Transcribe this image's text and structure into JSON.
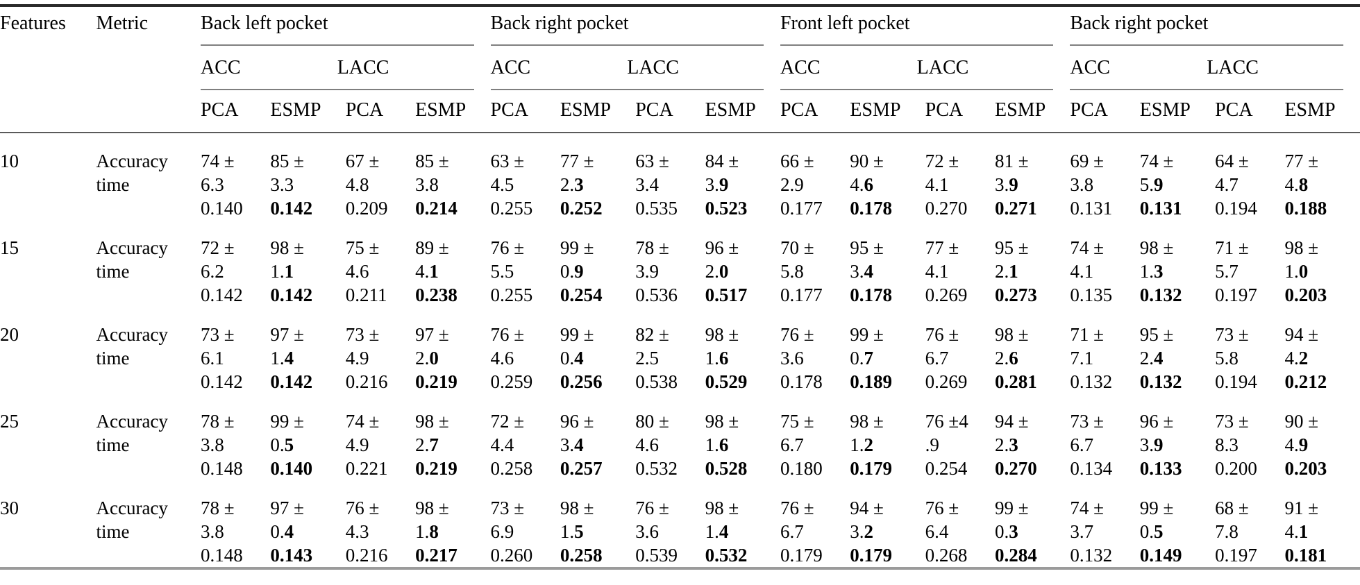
{
  "table": {
    "header": {
      "features_label": "Features",
      "metric_label": "Metric",
      "group_labels": [
        "Back left pocket",
        "Back right pocket",
        "Front left pocket",
        "Back right pocket"
      ],
      "subgroups": [
        "ACC",
        "LACC"
      ],
      "methods": [
        "PCA",
        "ESMP"
      ]
    },
    "rows": [
      {
        "features": "10",
        "metric_line1": "Accuracy",
        "metric_line2": "time",
        "acc": [
          "74 ±",
          "85 ±",
          "67 ±",
          "85 ±",
          "63 ±",
          "77 ±",
          "63 ±",
          "84 ±",
          "66 ±",
          "90 ±",
          "72 ±",
          "81 ±",
          "69 ±",
          "74 ±",
          "64 ±",
          "77 ±"
        ],
        "std": [
          "6.3",
          "3.3",
          "4.8",
          "3.8",
          "4.5",
          "2.**3**",
          "3.4",
          "3.**9**",
          "2.9",
          "4.**6**",
          "4.1",
          "3.**9**",
          "3.8",
          "5.**9**",
          "4.7",
          "4.**8**"
        ],
        "time": [
          "0.140",
          "**0.142**",
          "0.209",
          "**0.214**",
          "0.255",
          "**0.252**",
          "0.535",
          "**0.523**",
          "0.177",
          "**0.178**",
          "0.270",
          "**0.271**",
          "0.131",
          "**0.131**",
          "0.194",
          "**0.188**"
        ]
      },
      {
        "features": "15",
        "metric_line1": "Accuracy",
        "metric_line2": "time",
        "acc": [
          "72 ±",
          "98 ±",
          "75 ±",
          "89 ±",
          "76 ±",
          "99 ±",
          "78 ±",
          "96 ±",
          "70 ±",
          "95 ±",
          "77 ±",
          "95 ±",
          "74 ±",
          "98 ±",
          "71 ±",
          "98 ±"
        ],
        "std": [
          "6.2",
          "1.**1**",
          "4.6",
          "4.**1**",
          "5.5",
          "0.**9**",
          "3.9",
          "2.**0**",
          "5.8",
          "3.**4**",
          "4.1",
          "2.**1**",
          "4.1",
          "1.**3**",
          "5.7",
          "1.**0**"
        ],
        "time": [
          "0.142",
          "**0.142**",
          "0.211",
          "**0.238**",
          "0.255",
          "**0.254**",
          "0.536",
          "**0.517**",
          "0.177",
          "**0.178**",
          "0.269",
          "**0.273**",
          "0.135",
          "**0.132**",
          "0.197",
          "**0.203**"
        ]
      },
      {
        "features": "20",
        "metric_line1": "Accuracy",
        "metric_line2": "time",
        "acc": [
          "73 ±",
          "97 ±",
          "73 ±",
          "97 ±",
          "76 ±",
          "99 ±",
          "82 ±",
          "98 ±",
          "76 ±",
          "99 ±",
          "76 ±",
          "98 ±",
          "71 ±",
          "95 ±",
          "73 ±",
          "94 ±"
        ],
        "std": [
          "6.1",
          "1.**4**",
          "4.9",
          "2.**0**",
          "4.6",
          "0.**4**",
          "2.5",
          "1.**6**",
          "3.6",
          "0.**7**",
          "6.7",
          "2.**6**",
          "7.1",
          "2.**4**",
          "5.8",
          "4.**2**"
        ],
        "time": [
          "0.142",
          "**0.142**",
          "0.216",
          "**0.219**",
          "0.259",
          "**0.256**",
          "0.538",
          "**0.529**",
          "0.178",
          "**0.189**",
          "0.269",
          "**0.281**",
          "0.132",
          "**0.132**",
          "0.194",
          "**0.212**"
        ]
      },
      {
        "features": "25",
        "metric_line1": "Accuracy",
        "metric_line2": "time",
        "acc": [
          "78 ±",
          "99 ±",
          "74 ±",
          "98 ±",
          "72 ±",
          "96 ±",
          "80 ±",
          "98 ±",
          "75 ±",
          "98 ±",
          "76 ±4",
          "94 ±",
          "73 ±",
          "96 ±",
          "73 ±",
          "90 ±"
        ],
        "std": [
          "3.8",
          "0.**5**",
          "4.9",
          "2.**7**",
          "4.4",
          "3.**4**",
          "4.6",
          "1.**6**",
          "6.7",
          "1.**2**",
          ".9",
          "2.**3**",
          "6.7",
          "3.**9**",
          "8.3",
          "4.**9**"
        ],
        "time": [
          "0.148",
          "**0.140**",
          "0.221",
          "**0.219**",
          "0.258",
          "**0.257**",
          "0.532",
          "**0.528**",
          "0.180",
          "**0.179**",
          "0.254",
          "**0.270**",
          "0.134",
          "**0.133**",
          "0.200",
          "**0.203**"
        ]
      },
      {
        "features": "30",
        "metric_line1": "Accuracy",
        "metric_line2": "time",
        "acc": [
          "78 ±",
          "97 ±",
          "76 ±",
          "98 ±",
          "73 ±",
          "98 ±",
          "76 ±",
          "98 ±",
          "76 ±",
          "94 ±",
          "76 ±",
          "99 ±",
          "74 ±",
          "99 ±",
          "68 ±",
          "91 ±"
        ],
        "std": [
          "3.8",
          "0.**4**",
          "4.3",
          "1.**8**",
          "6.9",
          "1.**5**",
          "3.6",
          "1.**4**",
          "6.7",
          "3.**2**",
          "6.4",
          "0.**3**",
          "3.7",
          "0.**5**",
          "7.8",
          "4.**1**"
        ],
        "time": [
          "0.148",
          "**0.143**",
          "0.216",
          "**0.217**",
          "0.260",
          "**0.258**",
          "0.539",
          "**0.532**",
          "0.179",
          "**0.179**",
          "0.268",
          "**0.284**",
          "0.132",
          "**0.149**",
          "0.197",
          "**0.181**"
        ]
      }
    ]
  }
}
